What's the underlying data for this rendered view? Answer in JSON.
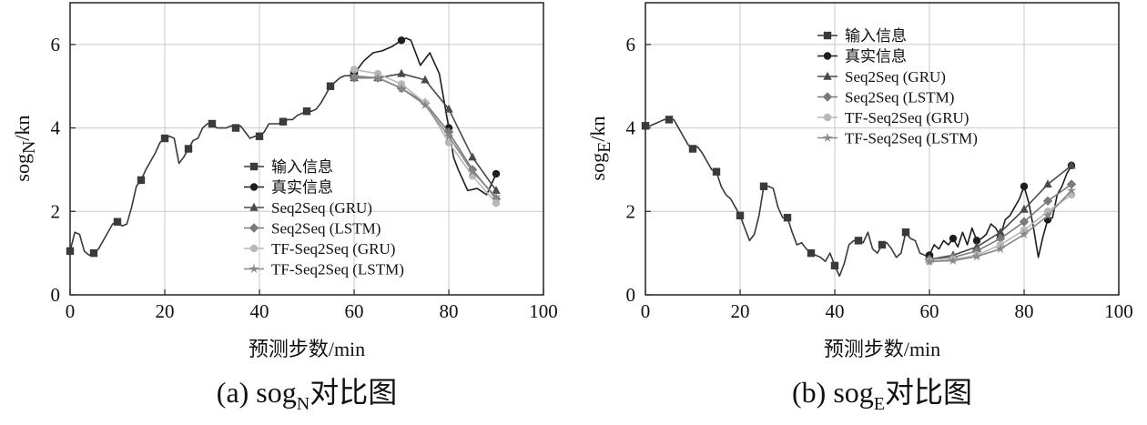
{
  "chart_data": [
    {
      "type": "line",
      "id": "a",
      "caption": "(a) sogN对比图",
      "caption_main": "(a) sog",
      "caption_sub": "N",
      "caption_tail": "对比图",
      "xlabel": "预测步数/min",
      "ylabel_main": "sog",
      "ylabel_sub": "N",
      "ylabel_tail": "/kn",
      "xlim": [
        0,
        100
      ],
      "ylim": [
        0,
        7
      ],
      "xticks": [
        0,
        20,
        40,
        60,
        80,
        100
      ],
      "yticks": [
        0,
        2,
        4,
        6
      ],
      "legend_position": "center-right",
      "series": [
        {
          "name": "输入信息",
          "color": "#3a3a3a",
          "marker": "square",
          "marker_every": 5,
          "x": [
            0,
            1,
            2,
            3,
            4,
            5,
            6,
            7,
            8,
            9,
            10,
            11,
            12,
            13,
            14,
            15,
            16,
            17,
            18,
            19,
            20,
            21,
            22,
            23,
            24,
            25,
            26,
            27,
            28,
            29,
            30,
            31,
            32,
            33,
            34,
            35,
            36,
            37,
            38,
            39,
            40,
            41,
            42,
            43,
            44,
            45,
            46,
            47,
            48,
            49,
            50,
            51,
            52,
            53,
            54,
            55,
            56,
            57,
            58,
            59,
            60
          ],
          "y": [
            1.05,
            1.5,
            1.45,
            1.05,
            0.95,
            1.0,
            1.1,
            1.3,
            1.5,
            1.7,
            1.75,
            1.65,
            1.7,
            2.1,
            2.6,
            2.75,
            3.0,
            3.2,
            3.4,
            3.65,
            3.75,
            3.8,
            3.75,
            3.15,
            3.3,
            3.5,
            3.7,
            3.75,
            4.0,
            4.1,
            4.1,
            4.0,
            4.0,
            4.0,
            4.05,
            4.0,
            4.05,
            3.9,
            3.75,
            3.8,
            3.8,
            3.9,
            4.1,
            4.1,
            4.1,
            4.15,
            4.2,
            4.2,
            4.3,
            4.35,
            4.4,
            4.4,
            4.45,
            4.6,
            4.8,
            5.0,
            5.1,
            5.2,
            5.25,
            5.25,
            5.3
          ]
        },
        {
          "name": "真实信息",
          "color": "#1e1e1e",
          "marker": "circle",
          "marker_every": 5,
          "x": [
            60,
            62,
            64,
            66,
            68,
            70,
            71,
            72,
            74,
            76,
            78,
            80,
            81,
            82,
            84,
            86,
            88,
            90
          ],
          "y": [
            5.3,
            5.6,
            5.8,
            5.85,
            5.95,
            6.1,
            6.15,
            6.1,
            5.5,
            5.8,
            5.3,
            4.0,
            3.3,
            3.0,
            2.5,
            2.55,
            2.4,
            2.9
          ]
        },
        {
          "name": "Seq2Seq (GRU)",
          "color": "#4a4a4a",
          "marker": "triangle",
          "marker_every": 5,
          "x": [
            60,
            65,
            70,
            75,
            80,
            85,
            90
          ],
          "y": [
            5.2,
            5.2,
            5.3,
            5.15,
            4.45,
            3.3,
            2.5
          ]
        },
        {
          "name": "Seq2Seq (LSTM)",
          "color": "#7a7a7a",
          "marker": "diamond",
          "marker_every": 5,
          "x": [
            60,
            65,
            70,
            75,
            80,
            85,
            90
          ],
          "y": [
            5.2,
            5.2,
            4.95,
            4.6,
            3.9,
            3.0,
            2.3
          ]
        },
        {
          "name": "TF-Seq2Seq (GRU)",
          "color": "#b8b8b8",
          "marker": "circle",
          "marker_every": 5,
          "x": [
            60,
            65,
            70,
            75,
            80,
            85,
            90
          ],
          "y": [
            5.4,
            5.3,
            5.05,
            4.6,
            3.65,
            2.85,
            2.2
          ]
        },
        {
          "name": "TF-Seq2Seq (LSTM)",
          "color": "#888888",
          "marker": "star",
          "marker_every": 5,
          "x": [
            60,
            65,
            70,
            75,
            80,
            85,
            90
          ],
          "y": [
            5.25,
            5.2,
            4.95,
            4.55,
            3.8,
            2.95,
            2.35
          ]
        }
      ]
    },
    {
      "type": "line",
      "id": "b",
      "caption": "(b) sogE对比图",
      "caption_main": "(b) sog",
      "caption_sub": "E",
      "caption_tail": "对比图",
      "xlabel": "预测步数/min",
      "ylabel_main": "sog",
      "ylabel_sub": "E",
      "ylabel_tail": "/kn",
      "xlim": [
        0,
        100
      ],
      "ylim": [
        0,
        7
      ],
      "xticks": [
        0,
        20,
        40,
        60,
        80,
        100
      ],
      "yticks": [
        0,
        2,
        4,
        6
      ],
      "legend_position": "top-center",
      "series": [
        {
          "name": "输入信息",
          "color": "#3a3a3a",
          "marker": "square",
          "marker_every": 5,
          "x": [
            0,
            1,
            2,
            3,
            4,
            5,
            6,
            7,
            8,
            9,
            10,
            11,
            12,
            13,
            14,
            15,
            16,
            17,
            18,
            19,
            20,
            21,
            22,
            23,
            24,
            25,
            26,
            27,
            28,
            29,
            30,
            31,
            32,
            33,
            34,
            35,
            36,
            37,
            38,
            39,
            40,
            41,
            42,
            43,
            44,
            45,
            46,
            47,
            48,
            49,
            50,
            51,
            52,
            53,
            54,
            55,
            56,
            57,
            58,
            59,
            60
          ],
          "y": [
            4.05,
            4.05,
            4.1,
            4.15,
            4.2,
            4.2,
            4.2,
            4.0,
            3.8,
            3.6,
            3.5,
            3.55,
            3.4,
            3.2,
            3.0,
            2.95,
            2.6,
            2.4,
            2.3,
            2.1,
            1.9,
            1.6,
            1.3,
            1.45,
            1.9,
            2.6,
            2.6,
            2.55,
            2.1,
            1.85,
            1.85,
            1.5,
            1.2,
            1.25,
            1.1,
            1.0,
            0.95,
            0.9,
            0.8,
            1.0,
            0.7,
            0.45,
            0.75,
            1.2,
            1.3,
            1.3,
            1.25,
            1.5,
            1.1,
            1.0,
            1.2,
            1.25,
            1.1,
            0.9,
            1.0,
            1.5,
            1.35,
            1.3,
            1.0,
            0.95,
            0.9
          ]
        },
        {
          "name": "真实信息",
          "color": "#1e1e1e",
          "marker": "circle",
          "marker_every": 5,
          "x": [
            60,
            61,
            62,
            63,
            64,
            65,
            66,
            67,
            68,
            69,
            70,
            71,
            72,
            73,
            74,
            75,
            76,
            77,
            78,
            79,
            80,
            81,
            82,
            83,
            84,
            85,
            86,
            87,
            88,
            89,
            90
          ],
          "y": [
            0.95,
            1.2,
            1.1,
            1.3,
            1.2,
            1.35,
            1.15,
            1.5,
            1.2,
            1.6,
            1.3,
            1.35,
            1.45,
            1.7,
            1.6,
            1.4,
            1.8,
            1.9,
            2.1,
            2.3,
            2.6,
            2.2,
            1.6,
            0.9,
            1.4,
            1.8,
            1.85,
            2.4,
            2.6,
            2.9,
            3.1
          ]
        },
        {
          "name": "Seq2Seq (GRU)",
          "color": "#4a4a4a",
          "marker": "triangle",
          "marker_every": 5,
          "x": [
            60,
            65,
            70,
            75,
            80,
            85,
            90
          ],
          "y": [
            0.85,
            0.95,
            1.15,
            1.5,
            2.05,
            2.65,
            3.1
          ]
        },
        {
          "name": "Seq2Seq (LSTM)",
          "color": "#7a7a7a",
          "marker": "diamond",
          "marker_every": 5,
          "x": [
            60,
            65,
            70,
            75,
            80,
            85,
            90
          ],
          "y": [
            0.85,
            0.9,
            1.05,
            1.35,
            1.75,
            2.25,
            2.65
          ]
        },
        {
          "name": "TF-Seq2Seq (GRU)",
          "color": "#b8b8b8",
          "marker": "circle",
          "marker_every": 5,
          "x": [
            60,
            65,
            70,
            75,
            80,
            85,
            90
          ],
          "y": [
            0.8,
            0.85,
            0.95,
            1.2,
            1.55,
            2.0,
            2.4
          ]
        },
        {
          "name": "TF-Seq2Seq (LSTM)",
          "color": "#888888",
          "marker": "star",
          "marker_every": 5,
          "x": [
            60,
            65,
            70,
            75,
            80,
            85,
            90
          ],
          "y": [
            0.8,
            0.82,
            0.92,
            1.1,
            1.45,
            1.9,
            2.5
          ]
        }
      ]
    }
  ]
}
